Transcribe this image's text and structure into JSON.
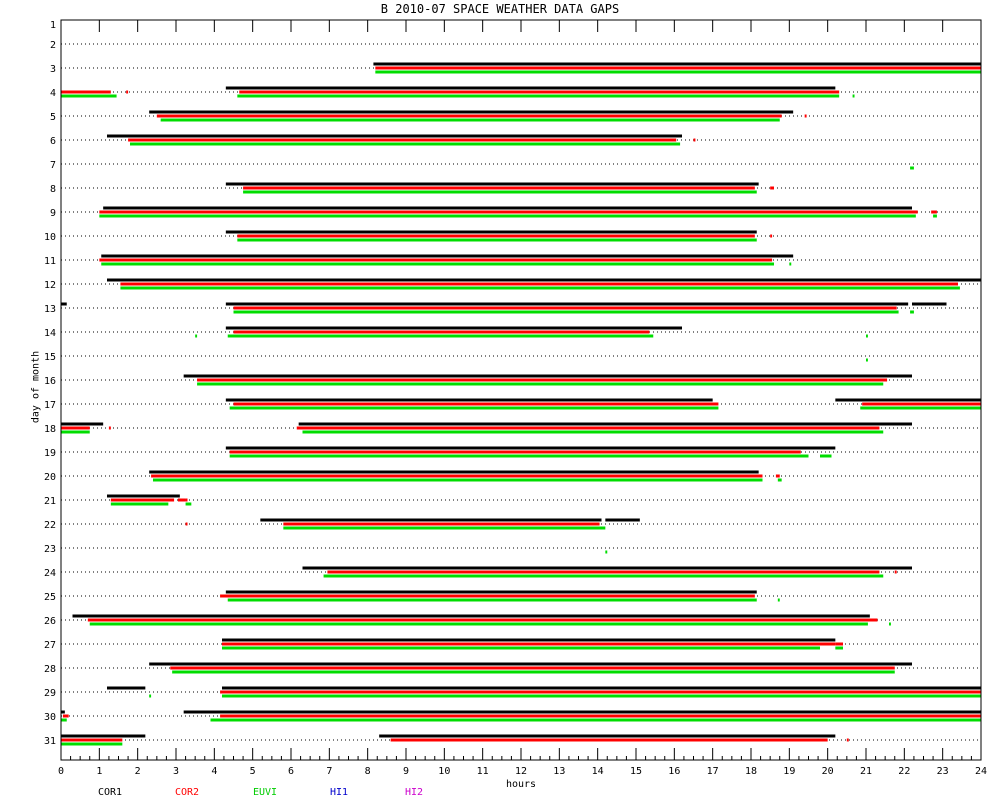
{
  "chart_data": {
    "type": "timeline",
    "title": "B  2010-07 SPACE WEATHER DATA GAPS",
    "xlabel": "hours",
    "ylabel": "day of month",
    "xlim": [
      0,
      24
    ],
    "ylim": [
      1,
      31
    ],
    "x_ticks": [
      0,
      1,
      2,
      3,
      4,
      5,
      6,
      7,
      8,
      9,
      10,
      11,
      12,
      13,
      14,
      15,
      16,
      17,
      18,
      19,
      20,
      21,
      22,
      23,
      24
    ],
    "y_ticks": [
      1,
      2,
      3,
      4,
      5,
      6,
      7,
      8,
      9,
      10,
      11,
      12,
      13,
      14,
      15,
      16,
      17,
      18,
      19,
      20,
      21,
      22,
      23,
      24,
      25,
      26,
      27,
      28,
      29,
      30,
      31
    ],
    "grid": "dotted horizontal",
    "legend_position": "bottom",
    "series": [
      {
        "name": "COR1",
        "color": "#000000",
        "offset": -1,
        "gaps": [
          [
            3,
            8.15,
            24
          ],
          [
            4,
            4.3,
            20.2
          ],
          [
            5,
            2.3,
            19.1
          ],
          [
            6,
            1.2,
            16.2
          ],
          [
            8,
            4.3,
            18.2
          ],
          [
            9,
            1.1,
            22.2
          ],
          [
            10,
            4.3,
            18.15
          ],
          [
            11,
            1.05,
            19.1
          ],
          [
            12,
            1.2,
            24
          ],
          [
            13,
            0,
            0.15
          ],
          [
            13,
            4.3,
            22.1
          ],
          [
            13,
            22.2,
            23.1
          ],
          [
            14,
            4.3,
            16.2
          ],
          [
            16,
            3.2,
            22.2
          ],
          [
            17,
            4.3,
            17.0
          ],
          [
            17,
            20.2,
            24
          ],
          [
            18,
            0,
            1.1
          ],
          [
            18,
            6.2,
            22.2
          ],
          [
            19,
            4.3,
            20.2
          ],
          [
            20,
            2.3,
            18.2
          ],
          [
            21,
            1.2,
            3.1
          ],
          [
            22,
            5.2,
            14.1
          ],
          [
            22,
            14.2,
            15.1
          ],
          [
            24,
            6.3,
            22.2
          ],
          [
            25,
            4.3,
            18.15
          ],
          [
            26,
            0.3,
            21.1
          ],
          [
            27,
            4.2,
            20.2
          ],
          [
            28,
            2.3,
            22.2
          ],
          [
            29,
            1.2,
            2.2
          ],
          [
            29,
            4.2,
            24
          ],
          [
            30,
            0,
            0.1
          ],
          [
            30,
            3.2,
            24
          ],
          [
            31,
            0,
            2.2
          ],
          [
            31,
            8.3,
            20.2
          ]
        ]
      },
      {
        "name": "COR2",
        "color": "#ff0000",
        "offset": 0,
        "gaps": [
          [
            3,
            8.2,
            24
          ],
          [
            4,
            0,
            1.3
          ],
          [
            4,
            1.7,
            1.75
          ],
          [
            4,
            4.65,
            20.3
          ],
          [
            5,
            2.5,
            18.8
          ],
          [
            5,
            19.4,
            19.45
          ],
          [
            6,
            1.75,
            16.05
          ],
          [
            6,
            16.5,
            16.55
          ],
          [
            8,
            4.75,
            18.1
          ],
          [
            8,
            18.5,
            18.6
          ],
          [
            9,
            1.0,
            22.35
          ],
          [
            9,
            22.7,
            22.85
          ],
          [
            10,
            4.6,
            18.1
          ],
          [
            10,
            18.5,
            18.55
          ],
          [
            11,
            1.0,
            18.55
          ],
          [
            12,
            1.55,
            23.4
          ],
          [
            13,
            4.5,
            21.8
          ],
          [
            14,
            4.5,
            15.35
          ],
          [
            16,
            3.55,
            21.55
          ],
          [
            17,
            4.5,
            17.15
          ],
          [
            17,
            20.9,
            24
          ],
          [
            18,
            0,
            0.75
          ],
          [
            18,
            1.25,
            1.3
          ],
          [
            18,
            6.15,
            21.35
          ],
          [
            19,
            4.4,
            19.3
          ],
          [
            20,
            2.35,
            18.3
          ],
          [
            20,
            18.65,
            18.75
          ],
          [
            21,
            1.3,
            2.95
          ],
          [
            21,
            3.05,
            3.25
          ],
          [
            21,
            3.25,
            3.3
          ],
          [
            22,
            5.8,
            14.05
          ],
          [
            22,
            3.25,
            3.3
          ],
          [
            24,
            6.95,
            21.35
          ],
          [
            24,
            21.75,
            21.8
          ],
          [
            25,
            4.15,
            18.1
          ],
          [
            26,
            0.7,
            21.3
          ],
          [
            27,
            4.2,
            20.2
          ],
          [
            27,
            20.2,
            20.4
          ],
          [
            28,
            2.85,
            21.75
          ],
          [
            29,
            4.15,
            24
          ],
          [
            30,
            0.05,
            0.2
          ],
          [
            30,
            4.15,
            24
          ],
          [
            31,
            0,
            1.6
          ],
          [
            31,
            8.6,
            20.0
          ],
          [
            31,
            20.5,
            20.55
          ]
        ]
      },
      {
        "name": "EUVI",
        "color": "#00dd00",
        "offset": 1,
        "gaps": [
          [
            3,
            8.2,
            24
          ],
          [
            4,
            0,
            1.45
          ],
          [
            4,
            4.6,
            20.3
          ],
          [
            4,
            20.65,
            20.7
          ],
          [
            5,
            2.6,
            18.75
          ],
          [
            6,
            1.8,
            16.15
          ],
          [
            7,
            22.15,
            22.25
          ],
          [
            8,
            4.75,
            18.15
          ],
          [
            9,
            1.0,
            22.3
          ],
          [
            9,
            22.75,
            22.85
          ],
          [
            10,
            4.6,
            18.15
          ],
          [
            11,
            1.05,
            18.6
          ],
          [
            11,
            19.0,
            19.05
          ],
          [
            12,
            1.55,
            23.45
          ],
          [
            13,
            4.5,
            21.85
          ],
          [
            13,
            22.15,
            22.25
          ],
          [
            14,
            3.5,
            3.55
          ],
          [
            14,
            4.35,
            15.45
          ],
          [
            14,
            21.0,
            21.05
          ],
          [
            15,
            21.0,
            21.05
          ],
          [
            16,
            3.55,
            21.45
          ],
          [
            17,
            4.4,
            17.15
          ],
          [
            17,
            20.85,
            24
          ],
          [
            18,
            0,
            0.75
          ],
          [
            18,
            6.3,
            21.45
          ],
          [
            19,
            4.4,
            19.5
          ],
          [
            19,
            19.8,
            20.1
          ],
          [
            20,
            2.4,
            18.3
          ],
          [
            20,
            18.7,
            18.8
          ],
          [
            21,
            1.3,
            2.8
          ],
          [
            21,
            3.25,
            3.4
          ],
          [
            22,
            5.8,
            14.2
          ],
          [
            23,
            14.2,
            14.25
          ],
          [
            24,
            6.85,
            21.45
          ],
          [
            25,
            4.35,
            18.15
          ],
          [
            25,
            18.7,
            18.75
          ],
          [
            26,
            0.75,
            21.05
          ],
          [
            26,
            21.6,
            21.65
          ],
          [
            27,
            4.2,
            19.8
          ],
          [
            27,
            20.2,
            20.4
          ],
          [
            28,
            2.9,
            21.75
          ],
          [
            29,
            2.3,
            2.35
          ],
          [
            29,
            4.2,
            24
          ],
          [
            30,
            0,
            0.15
          ],
          [
            30,
            3.9,
            24
          ],
          [
            31,
            0,
            1.6
          ]
        ]
      },
      {
        "name": "HI1",
        "color": "#0000cc",
        "offset": 2,
        "gaps": []
      },
      {
        "name": "HI2",
        "color": "#cc00cc",
        "offset": 3,
        "gaps": []
      }
    ]
  }
}
